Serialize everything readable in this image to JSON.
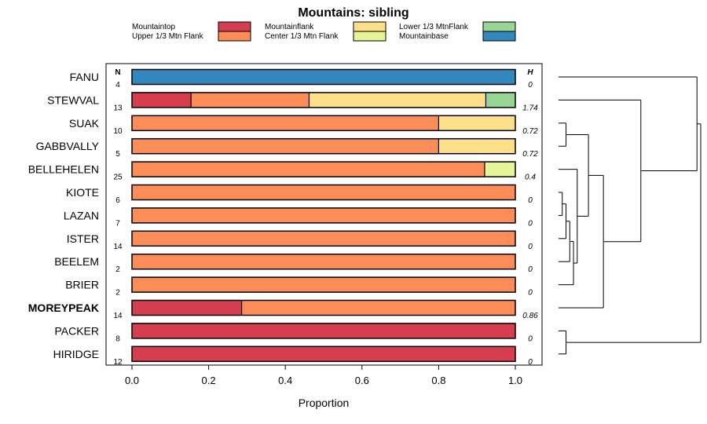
{
  "chart_data": {
    "type": "bar",
    "orientation": "horizontal",
    "stacked": true,
    "title": "Mountains: sibling",
    "xlabel": "Proportion",
    "ylabel": "",
    "xlim": [
      0,
      1
    ],
    "xticks": [
      "0.0",
      "0.2",
      "0.4",
      "0.6",
      "0.8",
      "1.0"
    ],
    "n_header": "N",
    "h_header": "H",
    "legend": [
      {
        "name": "Mountaintop",
        "color": "#d53e4f"
      },
      {
        "name": "Upper 1/3 Mtn Flank",
        "color": "#fc8d59"
      },
      {
        "name": "Mountainflank",
        "color": "#fee08b"
      },
      {
        "name": "Center 1/3 Mtn Flank",
        "color": "#e6f598"
      },
      {
        "name": "Lower 1/3 MtnFlank",
        "color": "#99d594"
      },
      {
        "name": "Mountainbase",
        "color": "#3288bd"
      }
    ],
    "categories": [
      "FANU",
      "STEWVAL",
      "SUAK",
      "GABBVALLY",
      "BELLEHELEN",
      "KIOTE",
      "LAZAN",
      "ISTER",
      "BEELEM",
      "BRIER",
      "MOREYPEAK",
      "PACKER",
      "HIRIDGE"
    ],
    "highlight": "MOREYPEAK",
    "n": [
      "4",
      "13",
      "10",
      "5",
      "25",
      "6",
      "7",
      "14",
      "2",
      "2",
      "14",
      "8",
      "12"
    ],
    "h": [
      "0",
      "1.74",
      "0.72",
      "0.72",
      "0.4",
      "0",
      "0",
      "0",
      "0",
      "0",
      "0.86",
      "0",
      "0"
    ],
    "series": [
      {
        "name": "Mountaintop",
        "values": [
          0,
          0.154,
          0,
          0,
          0,
          0,
          0,
          0,
          0,
          0,
          0.286,
          1,
          1
        ]
      },
      {
        "name": "Upper 1/3 Mtn Flank",
        "values": [
          0,
          0.308,
          0.8,
          0.8,
          0.92,
          1,
          1,
          1,
          1,
          1,
          0.714,
          0,
          0
        ]
      },
      {
        "name": "Mountainflank",
        "values": [
          0,
          0.461,
          0.2,
          0.2,
          0,
          0,
          0,
          0,
          0,
          0,
          0,
          0,
          0
        ]
      },
      {
        "name": "Center 1/3 Mtn Flank",
        "values": [
          0,
          0,
          0,
          0,
          0.08,
          0,
          0,
          0,
          0,
          0,
          0,
          0,
          0
        ]
      },
      {
        "name": "Lower 1/3 MtnFlank",
        "values": [
          0,
          0.077,
          0,
          0,
          0,
          0,
          0,
          0,
          0,
          0,
          0,
          0,
          0
        ]
      },
      {
        "name": "Mountainbase",
        "values": [
          1,
          0,
          0,
          0,
          0,
          0,
          0,
          0,
          0,
          0,
          0,
          0,
          0
        ]
      }
    ],
    "dendrogram": {
      "heights": {
        "n_suak_gabb": 2,
        "n_kiote_lazan": 1,
        "n_kl_ister": 2,
        "n_kli_beelem": 3,
        "n_klib_brier": 4,
        "n_bell_kb": 5,
        "n_sg_bell": 8,
        "n_sgb_morey": 12,
        "n_stew_rest": 22,
        "n_packer_hiridge": 2,
        "n_fanu_stew": 37,
        "n_root": 38
      }
    }
  }
}
